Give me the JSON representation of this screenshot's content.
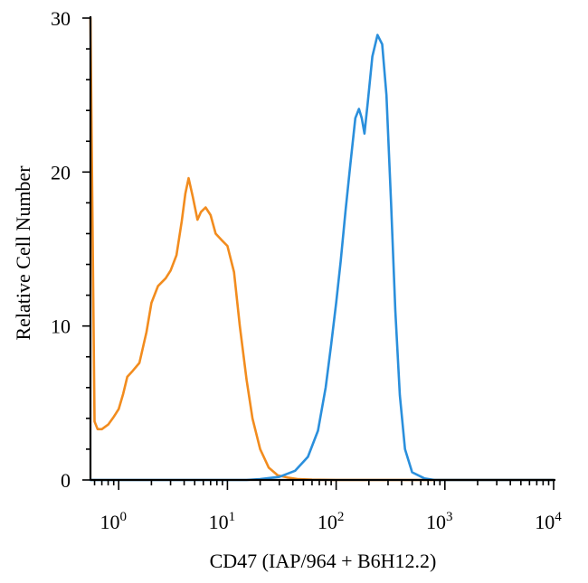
{
  "chart_data": {
    "type": "line",
    "xlabel": "CD47 (IAP/964 + B6H12.2)",
    "ylabel": "Relative Cell Number",
    "x_scale": "log",
    "xlim": [
      0.55,
      10000
    ],
    "ylim": [
      0,
      30
    ],
    "x_ticks": [
      {
        "base": "10",
        "exp": "0",
        "value": 1
      },
      {
        "base": "10",
        "exp": "1",
        "value": 10
      },
      {
        "base": "10",
        "exp": "2",
        "value": 100
      },
      {
        "base": "10",
        "exp": "3",
        "value": 1000
      },
      {
        "base": "10",
        "exp": "4",
        "value": 10000
      }
    ],
    "y_ticks": [
      {
        "label": "0",
        "value": 0
      },
      {
        "label": "10",
        "value": 10
      },
      {
        "label": "20",
        "value": 20
      },
      {
        "label": "30",
        "value": 30
      }
    ],
    "grid": false,
    "legend": "none",
    "series": [
      {
        "color": "#f28c1e",
        "points": [
          [
            0.55,
            30
          ],
          [
            0.6,
            3.8
          ],
          [
            0.64,
            3.3
          ],
          [
            0.7,
            3.3
          ],
          [
            0.8,
            3.6
          ],
          [
            0.9,
            4.1
          ],
          [
            1.0,
            4.6
          ],
          [
            1.1,
            5.6
          ],
          [
            1.2,
            6.7
          ],
          [
            1.35,
            7.1
          ],
          [
            1.55,
            7.6
          ],
          [
            1.8,
            9.6
          ],
          [
            2.0,
            11.5
          ],
          [
            2.3,
            12.6
          ],
          [
            2.7,
            13.1
          ],
          [
            3.0,
            13.6
          ],
          [
            3.4,
            14.6
          ],
          [
            3.8,
            16.8
          ],
          [
            4.1,
            18.6
          ],
          [
            4.4,
            19.6
          ],
          [
            4.8,
            18.4
          ],
          [
            5.3,
            16.9
          ],
          [
            5.7,
            17.4
          ],
          [
            6.3,
            17.7
          ],
          [
            7.0,
            17.2
          ],
          [
            7.8,
            16.0
          ],
          [
            8.8,
            15.6
          ],
          [
            10.0,
            15.2
          ],
          [
            11.5,
            13.5
          ],
          [
            13.0,
            10.0
          ],
          [
            15.0,
            6.5
          ],
          [
            17.0,
            4.0
          ],
          [
            20.0,
            2.0
          ],
          [
            24.0,
            0.8
          ],
          [
            29.0,
            0.3
          ],
          [
            36.0,
            0.15
          ],
          [
            45.0,
            0.05
          ],
          [
            60.0,
            0.02
          ],
          [
            100.0,
            0.0
          ],
          [
            10000,
            0.0
          ]
        ]
      },
      {
        "color": "#2a8fdc",
        "points": [
          [
            0.55,
            0.0
          ],
          [
            15.0,
            0.0
          ],
          [
            20.0,
            0.05
          ],
          [
            30.0,
            0.2
          ],
          [
            42.0,
            0.6
          ],
          [
            55.0,
            1.5
          ],
          [
            68.0,
            3.2
          ],
          [
            80.0,
            6.0
          ],
          [
            90.0,
            8.8
          ],
          [
            100.0,
            11.5
          ],
          [
            110.0,
            14.2
          ],
          [
            122.0,
            17.5
          ],
          [
            135.0,
            20.5
          ],
          [
            150.0,
            23.5
          ],
          [
            162.0,
            24.1
          ],
          [
            172.0,
            23.5
          ],
          [
            182.0,
            22.5
          ],
          [
            195.0,
            24.5
          ],
          [
            215.0,
            27.5
          ],
          [
            240.0,
            28.9
          ],
          [
            265.0,
            28.3
          ],
          [
            290.0,
            25.0
          ],
          [
            320.0,
            18.0
          ],
          [
            350.0,
            11.0
          ],
          [
            385.0,
            5.5
          ],
          [
            430.0,
            2.0
          ],
          [
            500.0,
            0.5
          ],
          [
            650.0,
            0.1
          ],
          [
            800.0,
            0.0
          ],
          [
            10000,
            0.0
          ]
        ]
      }
    ]
  }
}
